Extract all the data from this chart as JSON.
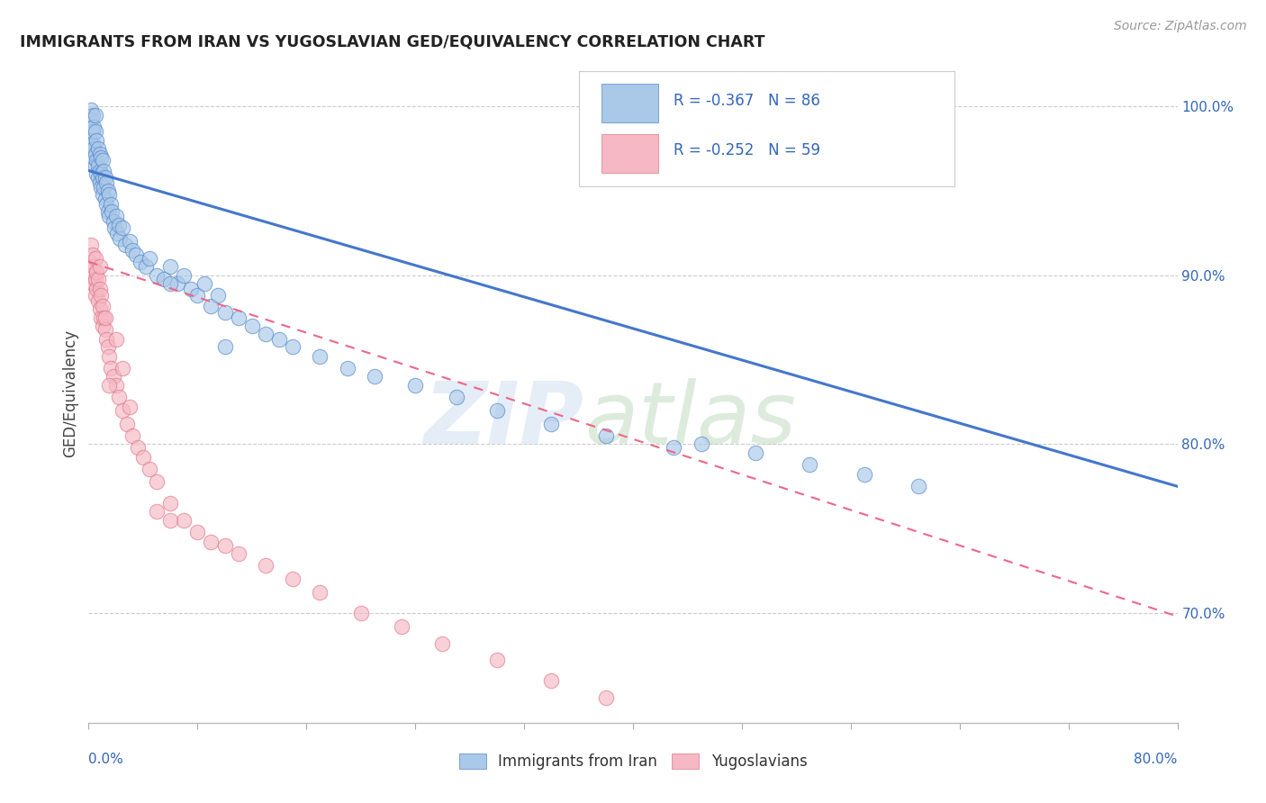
{
  "title": "IMMIGRANTS FROM IRAN VS YUGOSLAVIAN GED/EQUIVALENCY CORRELATION CHART",
  "source": "Source: ZipAtlas.com",
  "ylabel": "GED/Equivalency",
  "ytick_values": [
    0.7,
    0.8,
    0.9,
    1.0
  ],
  "xmin": 0.0,
  "xmax": 0.8,
  "ymin": 0.635,
  "ymax": 1.025,
  "blue_fill": "#aac8e8",
  "blue_edge": "#5588cc",
  "pink_fill": "#f5b8c4",
  "pink_edge": "#e07888",
  "trend_blue_color": "#4477cc",
  "trend_pink_color": "#ee6688",
  "legend_text_color": "#3366bb",
  "iran_x": [
    0.001,
    0.002,
    0.002,
    0.003,
    0.003,
    0.003,
    0.004,
    0.004,
    0.004,
    0.005,
    0.005,
    0.005,
    0.005,
    0.006,
    0.006,
    0.006,
    0.007,
    0.007,
    0.007,
    0.008,
    0.008,
    0.008,
    0.009,
    0.009,
    0.009,
    0.01,
    0.01,
    0.01,
    0.011,
    0.011,
    0.012,
    0.012,
    0.013,
    0.013,
    0.014,
    0.014,
    0.015,
    0.015,
    0.016,
    0.017,
    0.018,
    0.019,
    0.02,
    0.021,
    0.022,
    0.023,
    0.025,
    0.027,
    0.03,
    0.032,
    0.035,
    0.038,
    0.042,
    0.045,
    0.05,
    0.055,
    0.06,
    0.065,
    0.07,
    0.075,
    0.08,
    0.085,
    0.09,
    0.095,
    0.1,
    0.11,
    0.12,
    0.13,
    0.14,
    0.15,
    0.17,
    0.19,
    0.21,
    0.24,
    0.27,
    0.3,
    0.34,
    0.38,
    0.43,
    0.49,
    0.53,
    0.57,
    0.61,
    0.45,
    0.1,
    0.06
  ],
  "iran_y": [
    0.98,
    0.998,
    0.992,
    0.985,
    0.995,
    0.978,
    0.975,
    0.988,
    0.97,
    0.995,
    0.985,
    0.972,
    0.965,
    0.98,
    0.968,
    0.96,
    0.975,
    0.965,
    0.958,
    0.972,
    0.962,
    0.955,
    0.97,
    0.96,
    0.952,
    0.968,
    0.958,
    0.948,
    0.962,
    0.952,
    0.958,
    0.945,
    0.955,
    0.942,
    0.95,
    0.938,
    0.948,
    0.935,
    0.942,
    0.938,
    0.932,
    0.928,
    0.935,
    0.925,
    0.93,
    0.922,
    0.928,
    0.918,
    0.92,
    0.915,
    0.912,
    0.908,
    0.905,
    0.91,
    0.9,
    0.898,
    0.905,
    0.895,
    0.9,
    0.892,
    0.888,
    0.895,
    0.882,
    0.888,
    0.878,
    0.875,
    0.87,
    0.865,
    0.862,
    0.858,
    0.852,
    0.845,
    0.84,
    0.835,
    0.828,
    0.82,
    0.812,
    0.805,
    0.798,
    0.795,
    0.788,
    0.782,
    0.775,
    0.8,
    0.858,
    0.895
  ],
  "yugo_x": [
    0.001,
    0.002,
    0.002,
    0.003,
    0.003,
    0.004,
    0.004,
    0.005,
    0.005,
    0.005,
    0.006,
    0.006,
    0.007,
    0.007,
    0.008,
    0.008,
    0.009,
    0.009,
    0.01,
    0.01,
    0.011,
    0.012,
    0.013,
    0.014,
    0.015,
    0.016,
    0.018,
    0.02,
    0.022,
    0.025,
    0.028,
    0.032,
    0.036,
    0.04,
    0.045,
    0.05,
    0.06,
    0.07,
    0.08,
    0.09,
    0.1,
    0.11,
    0.13,
    0.15,
    0.17,
    0.2,
    0.23,
    0.26,
    0.3,
    0.34,
    0.38,
    0.05,
    0.025,
    0.015,
    0.008,
    0.012,
    0.02,
    0.03,
    0.06
  ],
  "yugo_y": [
    0.908,
    0.918,
    0.9,
    0.912,
    0.895,
    0.905,
    0.895,
    0.91,
    0.898,
    0.888,
    0.902,
    0.892,
    0.898,
    0.885,
    0.892,
    0.88,
    0.888,
    0.875,
    0.882,
    0.87,
    0.875,
    0.868,
    0.862,
    0.858,
    0.852,
    0.845,
    0.84,
    0.835,
    0.828,
    0.82,
    0.812,
    0.805,
    0.798,
    0.792,
    0.785,
    0.778,
    0.765,
    0.755,
    0.748,
    0.742,
    0.74,
    0.735,
    0.728,
    0.72,
    0.712,
    0.7,
    0.692,
    0.682,
    0.672,
    0.66,
    0.65,
    0.76,
    0.845,
    0.835,
    0.905,
    0.875,
    0.862,
    0.822,
    0.755
  ],
  "blue_trend_x0": 0.0,
  "blue_trend_y0": 0.962,
  "blue_trend_x1": 0.8,
  "blue_trend_y1": 0.775,
  "pink_trend_x0": 0.0,
  "pink_trend_y0": 0.908,
  "pink_trend_x1": 0.8,
  "pink_trend_y1": 0.698
}
